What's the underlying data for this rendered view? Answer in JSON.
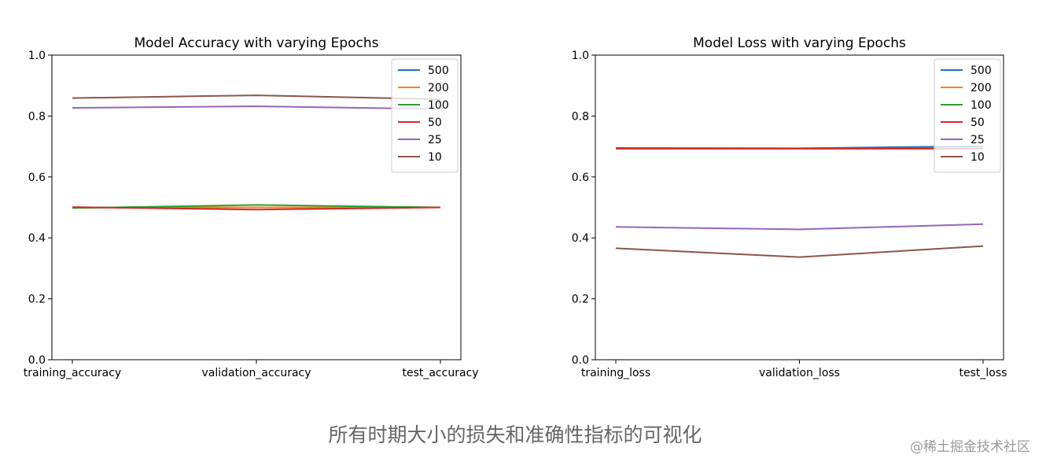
{
  "caption": "所有时期大小的损失和准确性指标的可视化",
  "watermark": "@稀土掘金技术社区",
  "series_colors": {
    "500": "#1f77b4",
    "200": "#ff7f0e",
    "100": "#2ca02c",
    "50": "#d62728",
    "25": "#9467bd",
    "10": "#8c564b"
  },
  "chart_data": [
    {
      "type": "line",
      "title": "Model Accuracy with varying Epochs",
      "categories": [
        "training_accuracy",
        "validation_accuracy",
        "test_accuracy"
      ],
      "ylim": [
        0,
        1
      ],
      "yticks": [
        "0.0",
        "0.2",
        "0.4",
        "0.6",
        "0.8",
        "1.0"
      ],
      "grid": false,
      "legend_position": "top-right",
      "series": [
        {
          "name": "500",
          "values": [
            0.5,
            0.5,
            0.5
          ]
        },
        {
          "name": "200",
          "values": [
            0.5,
            0.5,
            0.5
          ]
        },
        {
          "name": "100",
          "values": [
            0.498,
            0.508,
            0.5
          ]
        },
        {
          "name": "50",
          "values": [
            0.501,
            0.493,
            0.5
          ]
        },
        {
          "name": "25",
          "values": [
            0.827,
            0.832,
            0.823
          ]
        },
        {
          "name": "10",
          "values": [
            0.859,
            0.868,
            0.855
          ]
        }
      ]
    },
    {
      "type": "line",
      "title": "Model Loss with varying Epochs",
      "categories": [
        "training_loss",
        "validation_loss",
        "test_loss"
      ],
      "ylim": [
        0,
        1
      ],
      "yticks": [
        "0.0",
        "0.2",
        "0.4",
        "0.6",
        "0.8",
        "1.0"
      ],
      "grid": false,
      "legend_position": "top-right",
      "series": [
        {
          "name": "500",
          "values": [
            0.695,
            0.694,
            0.701
          ]
        },
        {
          "name": "200",
          "values": [
            0.693,
            0.693,
            0.693
          ]
        },
        {
          "name": "100",
          "values": [
            0.693,
            0.693,
            0.693
          ]
        },
        {
          "name": "50",
          "values": [
            0.693,
            0.693,
            0.693
          ]
        },
        {
          "name": "25",
          "values": [
            0.436,
            0.428,
            0.445
          ]
        },
        {
          "name": "10",
          "values": [
            0.366,
            0.337,
            0.373
          ]
        }
      ]
    }
  ]
}
